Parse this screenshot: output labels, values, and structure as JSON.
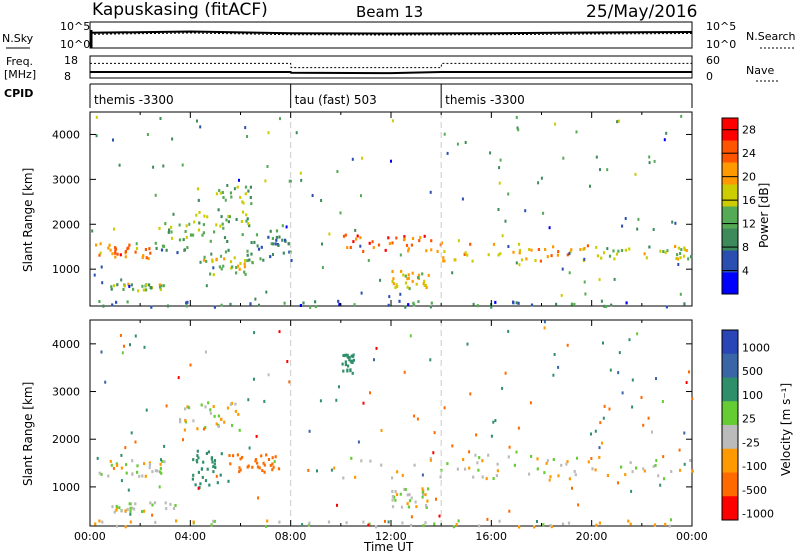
{
  "header": {
    "station": "Kapuskasing (fitACF)",
    "beam": "Beam 13",
    "date": "25/May/2016"
  },
  "side_labels": {
    "nsky": "N.Sky",
    "freq_line1": "Freq.",
    "freq_line2": "[MHz]",
    "cpid": "CPID",
    "nsearch": "N.Search",
    "nave": "Nave"
  },
  "colors": {
    "power": [
      "#0000ff",
      "#2a4fb0",
      "#3d8a5a",
      "#55aa55",
      "#cccc00",
      "#ff9900",
      "#ff5500",
      "#ff0000"
    ],
    "velocity": [
      "#2a45b5",
      "#3a66a8",
      "#2f8f6a",
      "#66cc33",
      "#bbbbbb",
      "#ff9900",
      "#ff6a00",
      "#ff0000"
    ],
    "ground_scatter": "#bbbbbb"
  },
  "chart_data": [
    {
      "type": "line",
      "panel": "noise",
      "y_ticks_left": [
        "10^5",
        "10^0"
      ],
      "y_ticks_right": [
        "10^5",
        "10^0"
      ],
      "series": [
        {
          "name": "N.Sky",
          "x": [
            "00:00",
            "04:00",
            "08:00",
            "12:00",
            "16:00",
            "20:00",
            "24:00"
          ],
          "values": [
            1000,
            2000,
            800,
            700,
            800,
            1200,
            1500
          ]
        },
        {
          "name": "N.Search",
          "x": [
            "00:00",
            "04:00",
            "08:00",
            "12:00",
            "16:00",
            "20:00",
            "24:00"
          ],
          "values": [
            1000,
            2000,
            800,
            700,
            800,
            1200,
            1500
          ]
        }
      ]
    },
    {
      "type": "line",
      "panel": "frequency",
      "y_ticks_left": [
        "18",
        "8"
      ],
      "y_ticks_right": [
        "60",
        "0"
      ],
      "series": [
        {
          "name": "Freq.",
          "x": [
            "00:00",
            "08:00",
            "08:01",
            "12:00",
            "14:00",
            "24:00"
          ],
          "values": [
            10.2,
            10.2,
            9.8,
            9.6,
            10.2,
            10.2
          ]
        },
        {
          "name": "Nave",
          "x": [
            "00:00",
            "08:00",
            "08:01",
            "14:00",
            "14:01",
            "24:00"
          ],
          "values": [
            42,
            42,
            28,
            28,
            42,
            42
          ]
        }
      ]
    },
    {
      "type": "table",
      "panel": "cpid",
      "segments": [
        {
          "start": "00:00",
          "end": "08:00",
          "label": "themis -3300"
        },
        {
          "start": "08:00",
          "end": "14:00",
          "label": "tau (fast) 503"
        },
        {
          "start": "14:00",
          "end": "24:00",
          "label": "themis -3300"
        }
      ]
    },
    {
      "type": "heatmap",
      "panel": "power",
      "xlabel": "",
      "ylabel": "Slant Range [km]",
      "xlim": [
        0,
        24
      ],
      "ylim": [
        180,
        4500
      ],
      "y_ticks": [
        "1000",
        "2000",
        "3000",
        "4000"
      ],
      "colorbar_label": "Power [dB]",
      "colorbar_ticks": [
        "4",
        "8",
        "12",
        "16",
        "20",
        "24",
        "28"
      ],
      "colorbar_range": [
        0,
        30
      ],
      "features": [
        {
          "t0": 0.2,
          "t1": 2.5,
          "r0": 1250,
          "r1": 1600,
          "level": 22
        },
        {
          "t0": 0.8,
          "t1": 3.0,
          "r0": 550,
          "r1": 700,
          "level": 14
        },
        {
          "t0": 2.5,
          "t1": 5.5,
          "r0": 1400,
          "r1": 2100,
          "level": 12
        },
        {
          "t0": 4.0,
          "t1": 6.5,
          "r0": 2000,
          "r1": 2900,
          "level": 14
        },
        {
          "t0": 4.5,
          "t1": 6.5,
          "r0": 900,
          "r1": 1300,
          "level": 16
        },
        {
          "t0": 6.0,
          "t1": 8.0,
          "r0": 1200,
          "r1": 1900,
          "level": 10
        },
        {
          "t0": 10.0,
          "t1": 14.0,
          "r0": 1400,
          "r1": 1800,
          "level": 24
        },
        {
          "t0": 12.0,
          "t1": 13.5,
          "r0": 600,
          "r1": 1000,
          "level": 18
        },
        {
          "t0": 14.0,
          "t1": 20.0,
          "r0": 1200,
          "r1": 1600,
          "level": 20
        },
        {
          "t0": 20.0,
          "t1": 24.0,
          "r0": 1250,
          "r1": 1550,
          "level": 16
        },
        {
          "t0": 0.0,
          "t1": 24.0,
          "r0": 180,
          "r1": 320,
          "level": 8
        }
      ]
    },
    {
      "type": "heatmap",
      "panel": "velocity",
      "xlabel": "Time UT",
      "ylabel": "Slant Range [km]",
      "xlim": [
        0,
        24
      ],
      "ylim": [
        180,
        4500
      ],
      "x_ticks": [
        "00:00",
        "04:00",
        "08:00",
        "12:00",
        "16:00",
        "20:00",
        "00:00"
      ],
      "y_ticks": [
        "1000",
        "2000",
        "3000",
        "4000"
      ],
      "colorbar_label": "Velocity [m s⁻¹]",
      "colorbar_ticks": [
        "1000",
        "500",
        "100",
        "25",
        "-25",
        "-100",
        "-500",
        "-1000"
      ],
      "colorbar_range": [
        -1000,
        1000
      ],
      "features": [
        {
          "t0": 0.2,
          "t1": 3.0,
          "r0": 1250,
          "r1": 1600,
          "velocity": 0
        },
        {
          "t0": 0.8,
          "t1": 3.5,
          "r0": 500,
          "r1": 700,
          "velocity": 0
        },
        {
          "t0": 3.5,
          "t1": 6.0,
          "r0": 2200,
          "r1": 2800,
          "velocity": 0
        },
        {
          "t0": 4.0,
          "t1": 5.5,
          "r0": 1000,
          "r1": 1800,
          "velocity": 200
        },
        {
          "t0": 5.5,
          "t1": 7.5,
          "r0": 1300,
          "r1": 1800,
          "velocity": -200
        },
        {
          "t0": 10.0,
          "t1": 10.5,
          "r0": 3400,
          "r1": 3800,
          "velocity": 200
        },
        {
          "t0": 10.0,
          "t1": 24.0,
          "r0": 1200,
          "r1": 1700,
          "velocity": 0
        },
        {
          "t0": 12.0,
          "t1": 13.5,
          "r0": 600,
          "r1": 1000,
          "velocity": 0
        },
        {
          "t0": 0.0,
          "t1": 24.0,
          "r0": 180,
          "r1": 320,
          "velocity": 0
        }
      ]
    }
  ]
}
